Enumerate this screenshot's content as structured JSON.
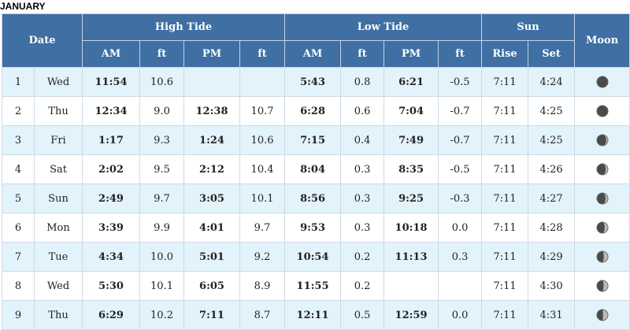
{
  "month": "JANUARY",
  "headers": {
    "date": "Date",
    "high_tide": "High Tide",
    "low_tide": "Low Tide",
    "sun": "Sun",
    "moon": "Moon",
    "am": "AM",
    "ft": "ft",
    "pm": "PM",
    "rise": "Rise",
    "set": "Set"
  },
  "rows": [
    {
      "day": "1",
      "dow": "Wed",
      "hi_am": "11:54",
      "hi_am_ft": "10.6",
      "hi_pm": "",
      "hi_pm_ft": "",
      "lo_am": "5:43",
      "lo_am_ft": "0.8",
      "lo_pm": "6:21",
      "lo_pm_ft": "-0.5",
      "rise": "7:11",
      "set": "4:24",
      "moon": "full-moon-icon"
    },
    {
      "day": "2",
      "dow": "Thu",
      "hi_am": "12:34",
      "hi_am_ft": "9.0",
      "hi_pm": "12:38",
      "hi_pm_ft": "10.7",
      "lo_am": "6:28",
      "lo_am_ft": "0.6",
      "lo_pm": "7:04",
      "lo_pm_ft": "-0.7",
      "rise": "7:11",
      "set": "4:25",
      "moon": "full-moon-icon"
    },
    {
      "day": "3",
      "dow": "Fri",
      "hi_am": "1:17",
      "hi_am_ft": "9.3",
      "hi_pm": "1:24",
      "hi_pm_ft": "10.6",
      "lo_am": "7:15",
      "lo_am_ft": "0.4",
      "lo_pm": "7:49",
      "lo_pm_ft": "-0.7",
      "rise": "7:11",
      "set": "4:25",
      "moon": "waning-gibbous-moon-icon"
    },
    {
      "day": "4",
      "dow": "Sat",
      "hi_am": "2:02",
      "hi_am_ft": "9.5",
      "hi_pm": "2:12",
      "hi_pm_ft": "10.4",
      "lo_am": "8:04",
      "lo_am_ft": "0.3",
      "lo_pm": "8:35",
      "lo_pm_ft": "-0.5",
      "rise": "7:11",
      "set": "4:26",
      "moon": "waning-gibbous-moon-icon"
    },
    {
      "day": "5",
      "dow": "Sun",
      "hi_am": "2:49",
      "hi_am_ft": "9.7",
      "hi_pm": "3:05",
      "hi_pm_ft": "10.1",
      "lo_am": "8:56",
      "lo_am_ft": "0.3",
      "lo_pm": "9:25",
      "lo_pm_ft": "-0.3",
      "rise": "7:11",
      "set": "4:27",
      "moon": "waning-gibbous-moon-icon"
    },
    {
      "day": "6",
      "dow": "Mon",
      "hi_am": "3:39",
      "hi_am_ft": "9.9",
      "hi_pm": "4:01",
      "hi_pm_ft": "9.7",
      "lo_am": "9:53",
      "lo_am_ft": "0.3",
      "lo_pm": "10:18",
      "lo_pm_ft": "0.0",
      "rise": "7:11",
      "set": "4:28",
      "moon": "waning-gibbous-moon-icon"
    },
    {
      "day": "7",
      "dow": "Tue",
      "hi_am": "4:34",
      "hi_am_ft": "10.0",
      "hi_pm": "5:01",
      "hi_pm_ft": "9.2",
      "lo_am": "10:54",
      "lo_am_ft": "0.2",
      "lo_pm": "11:13",
      "lo_pm_ft": "0.3",
      "rise": "7:11",
      "set": "4:29",
      "moon": "waning-gibbous-moon-icon"
    },
    {
      "day": "8",
      "dow": "Wed",
      "hi_am": "5:30",
      "hi_am_ft": "10.1",
      "hi_pm": "6:05",
      "hi_pm_ft": "8.9",
      "lo_am": "11:55",
      "lo_am_ft": "0.2",
      "lo_pm": "",
      "lo_pm_ft": "",
      "rise": "7:11",
      "set": "4:30",
      "moon": "waning-gibbous-moon-icon"
    },
    {
      "day": "9",
      "dow": "Thu",
      "hi_am": "6:29",
      "hi_am_ft": "10.2",
      "hi_pm": "7:11",
      "hi_pm_ft": "8.7",
      "lo_am": "12:11",
      "lo_am_ft": "0.5",
      "lo_pm": "12:59",
      "lo_pm_ft": "0.0",
      "rise": "7:11",
      "set": "4:31",
      "moon": "waning-gibbous-moon-icon"
    }
  ],
  "moon_fractions": [
    1.0,
    0.98,
    0.85,
    0.8,
    0.78,
    0.7,
    0.62,
    0.6,
    0.55
  ]
}
